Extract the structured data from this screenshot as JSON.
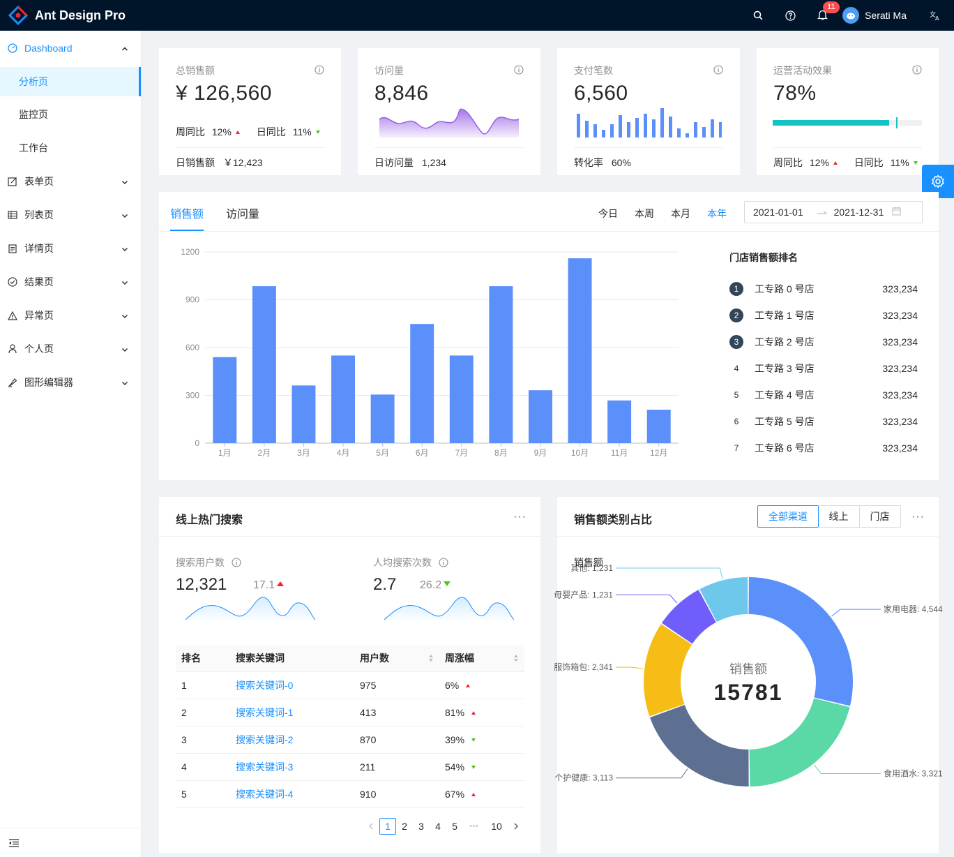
{
  "header": {
    "title": "Ant Design Pro",
    "notifications": "11",
    "user": "Serati Ma"
  },
  "sidebar": {
    "items": [
      {
        "label": "Dashboard"
      },
      {
        "label": "分析页"
      },
      {
        "label": "监控页"
      },
      {
        "label": "工作台"
      },
      {
        "label": "表单页"
      },
      {
        "label": "列表页"
      },
      {
        "label": "详情页"
      },
      {
        "label": "结果页"
      },
      {
        "label": "异常页"
      },
      {
        "label": "个人页"
      },
      {
        "label": "图形编辑器"
      }
    ]
  },
  "stats": [
    {
      "label": "总销售额",
      "value": "¥ 126,560",
      "wow_label": "周同比",
      "wow": "12%",
      "dod_label": "日同比",
      "dod": "11%",
      "foot_label": "日销售额",
      "foot_value": "￥12,423"
    },
    {
      "label": "访问量",
      "value": "8,846",
      "foot_label": "日访问量",
      "foot_value": "1,234"
    },
    {
      "label": "支付笔数",
      "value": "6,560",
      "foot_label": "转化率",
      "foot_value": "60%"
    },
    {
      "label": "运营活动效果",
      "value": "78%",
      "progress": 0.78,
      "wow_label": "周同比",
      "wow": "12%",
      "dod_label": "日同比",
      "dod": "11%"
    }
  ],
  "sales": {
    "tabs": [
      "销售额",
      "访问量"
    ],
    "ranges": [
      "今日",
      "本周",
      "本月",
      "本年"
    ],
    "date_start": "2021-01-01",
    "date_end": "2021-12-31",
    "rank_title": "门店销售额排名",
    "ranking": [
      {
        "rank": "1",
        "name": "工专路 0 号店",
        "value": "323,234"
      },
      {
        "rank": "2",
        "name": "工专路 1 号店",
        "value": "323,234"
      },
      {
        "rank": "3",
        "name": "工专路 2 号店",
        "value": "323,234"
      },
      {
        "rank": "4",
        "name": "工专路 3 号店",
        "value": "323,234"
      },
      {
        "rank": "5",
        "name": "工专路 4 号店",
        "value": "323,234"
      },
      {
        "rank": "6",
        "name": "工专路 5 号店",
        "value": "323,234"
      },
      {
        "rank": "7",
        "name": "工专路 6 号店",
        "value": "323,234"
      }
    ]
  },
  "chart_data": [
    {
      "type": "bar",
      "categories": [
        "1月",
        "2月",
        "3月",
        "4月",
        "5月",
        "6月",
        "7月",
        "8月",
        "9月",
        "10月",
        "11月",
        "12月"
      ],
      "values": [
        540,
        985,
        362,
        550,
        305,
        748,
        550,
        985,
        332,
        1160,
        268,
        210
      ],
      "yticks": [
        "0",
        "300",
        "600",
        "900",
        "1200"
      ],
      "ylim": [
        0,
        1200
      ],
      "color": "#5b8ff9"
    },
    {
      "type": "pie",
      "title": "销售额",
      "center_label": "销售额",
      "center_value": "15781",
      "slices": [
        {
          "name": "家用电器",
          "value": 4544,
          "label": "家用电器: 4,544",
          "color": "#5b8ff9"
        },
        {
          "name": "食用酒水",
          "value": 3321,
          "label": "食用酒水: 3,321",
          "color": "#5ad8a6"
        },
        {
          "name": "个护健康",
          "value": 3113,
          "label": "个护健康: 3,113",
          "color": "#5d7092"
        },
        {
          "name": "服饰箱包",
          "value": 2341,
          "label": "服饰箱包: 2,341",
          "color": "#f6bd16"
        },
        {
          "name": "母婴产品",
          "value": 1231,
          "label": "母婴产品: 1,231",
          "color": "#6f5ef9"
        },
        {
          "name": "其他",
          "value": 1231,
          "label": "其他: 1,231",
          "color": "#6dc8ec"
        }
      ]
    }
  ],
  "search": {
    "title": "线上热门搜索",
    "users_label": "搜索用户数",
    "users_value": "12,321",
    "users_change": "17.1",
    "per_label": "人均搜索次数",
    "per_value": "2.7",
    "per_change": "26.2",
    "columns": [
      "排名",
      "搜索关键词",
      "用户数",
      "周涨幅"
    ],
    "rows": [
      {
        "rank": "1",
        "keyword": "搜索关键词-0",
        "count": "975",
        "range": "6%",
        "up": true
      },
      {
        "rank": "2",
        "keyword": "搜索关键词-1",
        "count": "413",
        "range": "81%",
        "up": true
      },
      {
        "rank": "3",
        "keyword": "搜索关键词-2",
        "count": "870",
        "range": "39%",
        "up": false
      },
      {
        "rank": "4",
        "keyword": "搜索关键词-3",
        "count": "211",
        "range": "54%",
        "up": false
      },
      {
        "rank": "5",
        "keyword": "搜索关键词-4",
        "count": "910",
        "range": "67%",
        "up": true
      }
    ],
    "pages": [
      "1",
      "2",
      "3",
      "4",
      "5",
      "10"
    ],
    "ellipsis": "•••"
  },
  "category": {
    "title": "销售额类别占比",
    "segments": [
      "全部渠道",
      "线上",
      "门店"
    ]
  }
}
